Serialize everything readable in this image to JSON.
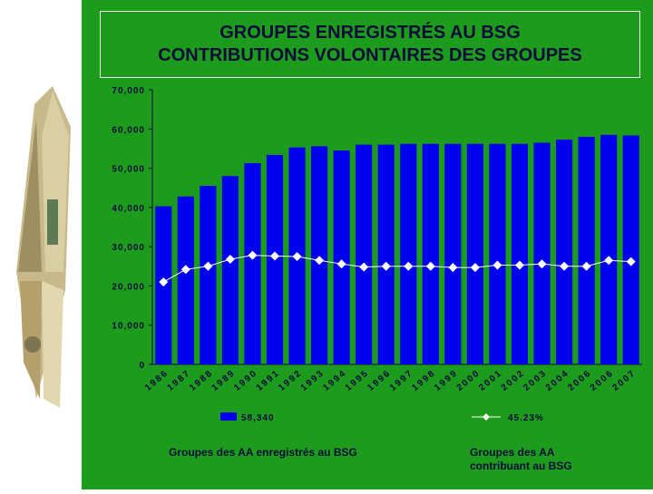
{
  "slide": {
    "title_line1": "GROUPES ENREGISTRÉS AU BSG",
    "title_line2": "CONTRIBUTIONS VOLONTAIRES DES GROUPES",
    "caption_left": "Groupes des AA enregistrés au BSG",
    "caption_right_line1": "Groupes des AA",
    "caption_right_line2": "contribuant au BSG"
  },
  "colors": {
    "panel": "#1d9b1d",
    "bar": "#0000ee",
    "line": "#ffffff",
    "title_text": "#0b0b3a"
  },
  "chart_data": {
    "type": "bar",
    "categories": [
      "1986",
      "1987",
      "1988",
      "1989",
      "1990",
      "1991",
      "1992",
      "1993",
      "1994",
      "1995",
      "1996",
      "1997",
      "1998",
      "1999",
      "2000",
      "2001",
      "2002",
      "2003",
      "2004",
      "2006",
      "2006",
      "2007"
    ],
    "ylim": [
      0,
      70000
    ],
    "y_ticks": [
      "0",
      "10,000",
      "20,000",
      "30,000",
      "40,000",
      "50,000",
      "60,000",
      "70,000"
    ],
    "series": [
      {
        "name": "58,340",
        "kind": "bar",
        "values": [
          40300,
          42800,
          45500,
          48000,
          51300,
          53400,
          55300,
          55600,
          54500,
          56000,
          56000,
          56200,
          56200,
          56200,
          56200,
          56200,
          56200,
          56500,
          57300,
          58000,
          58500,
          58340
        ]
      },
      {
        "name": "45.23%",
        "kind": "line",
        "values": [
          21000,
          24200,
          25000,
          26800,
          27800,
          27600,
          27500,
          26500,
          25600,
          24800,
          25000,
          25000,
          25000,
          24700,
          24700,
          25300,
          25300,
          25600,
          25000,
          25000,
          26500,
          26200
        ]
      }
    ],
    "legend_placement": "bottom"
  }
}
